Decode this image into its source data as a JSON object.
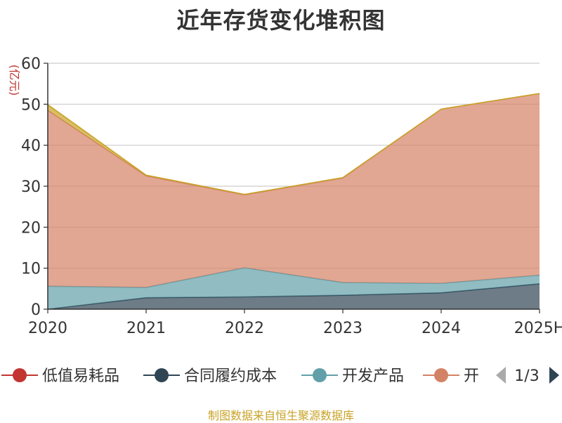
{
  "chart_data": {
    "type": "area",
    "stacked": true,
    "title": "近年存货变化堆积图",
    "ylabel": "(亿元)",
    "ylim": [
      0,
      60
    ],
    "yticks": [
      0,
      10,
      20,
      30,
      40,
      50,
      60
    ],
    "categories": [
      "2020",
      "2021",
      "2022",
      "2023",
      "2024",
      "2025H"
    ],
    "grid": true,
    "series": [
      {
        "name": "合同履约成本",
        "color": "#2f4554",
        "values": [
          0.0,
          2.8,
          3.0,
          3.4,
          4.0,
          6.2
        ]
      },
      {
        "name": "开发产品",
        "color": "#61a0a8",
        "values": [
          5.6,
          2.5,
          7.1,
          3.1,
          2.3,
          2.1
        ]
      },
      {
        "name": "开",
        "color": "#d48265",
        "values": [
          42.9,
          27.2,
          17.8,
          25.5,
          42.5,
          44.3
        ]
      },
      {
        "name": "",
        "color": "#c9a227",
        "values": [
          1.4,
          0.2,
          0.1,
          0.1,
          0.0,
          0.0
        ]
      }
    ],
    "legend": {
      "placement": "bottom",
      "entries": [
        {
          "name": "低值易耗品",
          "color": "#c23531"
        },
        {
          "name": "合同履约成本",
          "color": "#2f4554"
        },
        {
          "name": "开发产品",
          "color": "#61a0a8"
        },
        {
          "name": "开",
          "color": "#d48265"
        }
      ],
      "page": "1/3"
    }
  },
  "source_note": "制图数据来自恒生聚源数据库"
}
